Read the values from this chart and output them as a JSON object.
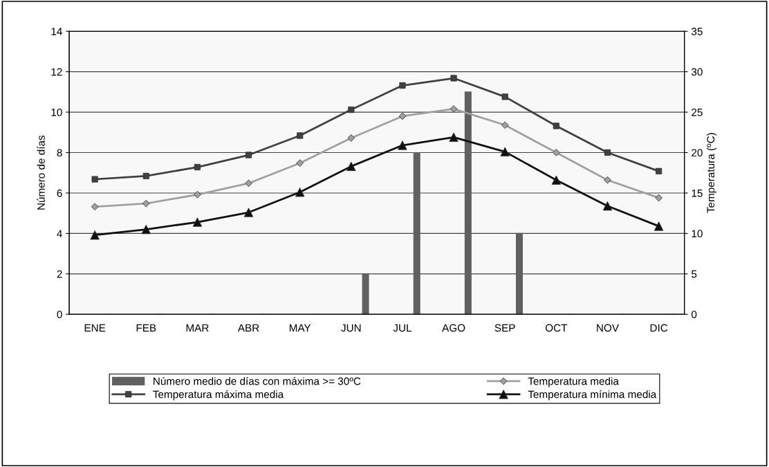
{
  "chart_data": {
    "type": "bar",
    "categories": [
      "ENE",
      "FEB",
      "MAR",
      "ABR",
      "MAY",
      "JUN",
      "JUL",
      "AGO",
      "SEP",
      "OCT",
      "NOV",
      "DIC"
    ],
    "ylabel": "Número de días",
    "y2label": "Temperatura (ºC)",
    "ylim": [
      0,
      14
    ],
    "yticks": [
      0,
      2,
      4,
      6,
      8,
      10,
      12,
      14
    ],
    "y2lim": [
      0,
      35
    ],
    "y2ticks": [
      0,
      5,
      10,
      15,
      20,
      25,
      30,
      35
    ],
    "grid": "y",
    "legend": "bottom",
    "series": [
      {
        "name": "Número medio de días con máxima >= 30ºC",
        "color": "#606060",
        "values": [
          0,
          0,
          0,
          0,
          0,
          2,
          8,
          11,
          4,
          0,
          0,
          0
        ]
      },
      {
        "name": "Temperatura máxima media",
        "type": "line",
        "axis": "y2",
        "marker": "square",
        "color": "#404040",
        "values": [
          16.7,
          17.1,
          18.2,
          19.7,
          22.1,
          25.3,
          28.3,
          29.2,
          26.9,
          23.3,
          20.0,
          17.7
        ]
      },
      {
        "name": "Temperatura media",
        "type": "line",
        "axis": "y2",
        "marker": "diamond",
        "color": "#a0a0a0",
        "values": [
          13.3,
          13.7,
          14.8,
          16.2,
          18.7,
          21.8,
          24.5,
          25.4,
          23.4,
          20.0,
          16.6,
          14.4
        ]
      },
      {
        "name": "Temperatura mínima media",
        "type": "line",
        "axis": "y2",
        "marker": "triangle",
        "color": "#101010",
        "values": [
          9.8,
          10.5,
          11.4,
          12.6,
          15.1,
          18.3,
          20.9,
          21.9,
          20.1,
          16.6,
          13.4,
          10.9
        ]
      }
    ]
  }
}
